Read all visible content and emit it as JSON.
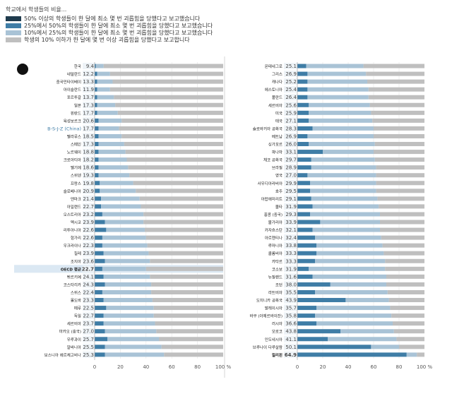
{
  "legend": {
    "title": "학교에서 학생들의 비율...",
    "items": [
      {
        "label": "50% 이상의 학생들이 한 달에 최소 몇 번 괴롭힘을 당했다고 보고했습니다",
        "color": "#1f3b4d"
      },
      {
        "label": "25%에서 50%의 학생들이 한 달에 최소 몇 번 괴롭힘을 당했다고 보고했습니다",
        "color": "#3f7da6"
      },
      {
        "label": "10%에서 25%의 학생들이 한 달에 최소 몇 번 괴롭힘을 당했다고 보고했습니다",
        "color": "#a9c3d6"
      },
      {
        "label": "학생의 10% 이하가 한 달에 몇 번 이상 괴롭힘을 당했다고 보고합니다",
        "color": "#bfbfbf"
      }
    ]
  },
  "chart_data": {
    "type": "bar",
    "subtype": "horizontal-stacked-100",
    "xlim": [
      0,
      100
    ],
    "xticks": [
      "0",
      "20",
      "40",
      "60",
      "80",
      "100 %"
    ],
    "series_names": [
      "50% 이상",
      "25%에서 50%",
      "10%에서 25%",
      "10% 이하"
    ],
    "series_colors": [
      "#1f3b4d",
      "#3f7da6",
      "#a9c3d6",
      "#bfbfbf"
    ],
    "left_panel": [
      {
        "name": "한국",
        "value": "9.4",
        "s": [
          0,
          1,
          6,
          93
        ]
      },
      {
        "name": "네덜란드",
        "value": "12.2",
        "s": [
          0,
          2,
          10,
          88
        ]
      },
      {
        "name": "중국민타이베이",
        "value": "13.3",
        "s": [
          0,
          2,
          12,
          86
        ]
      },
      {
        "name": "아이슬란드",
        "value": "11.9",
        "s": [
          0,
          2,
          10,
          88
        ]
      },
      {
        "name": "포르투갈",
        "value": "13.7",
        "s": [
          0,
          2,
          13,
          85
        ]
      },
      {
        "name": "일본",
        "value": "17.3",
        "s": [
          0,
          2,
          14,
          84
        ]
      },
      {
        "name": "핀란드",
        "value": "17.7",
        "s": [
          0,
          2,
          16,
          82
        ]
      },
      {
        "name": "육성보르크",
        "value": "20.6",
        "s": [
          0,
          3,
          18,
          79
        ]
      },
      {
        "name": "B-S-J-Z (China)",
        "value": "17.7",
        "s": [
          0,
          3,
          16,
          81
        ],
        "highlight": true
      },
      {
        "name": "벨라루스",
        "value": "18.5",
        "s": [
          0,
          3,
          18,
          79
        ]
      },
      {
        "name": "스페인",
        "value": "17.3",
        "s": [
          0,
          3,
          20,
          77
        ]
      },
      {
        "name": "노르웨이",
        "value": "18.8",
        "s": [
          0,
          3,
          21,
          76
        ]
      },
      {
        "name": "크로아티아",
        "value": "18.2",
        "s": [
          0,
          3,
          22,
          75
        ]
      },
      {
        "name": "벨기에",
        "value": "18.6",
        "s": [
          0,
          3,
          23,
          74
        ]
      },
      {
        "name": "스위덴",
        "value": "19.3",
        "s": [
          0,
          3,
          24,
          73
        ]
      },
      {
        "name": "프랑스",
        "value": "19.8",
        "s": [
          0,
          4,
          26,
          70
        ]
      },
      {
        "name": "슬로베니아",
        "value": "20.9",
        "s": [
          0,
          4,
          28,
          68
        ]
      },
      {
        "name": "덴마크",
        "value": "21.4",
        "s": [
          0,
          5,
          30,
          65
        ]
      },
      {
        "name": "아일랜드",
        "value": "22.7",
        "s": [
          0,
          5,
          31,
          64
        ]
      },
      {
        "name": "오스트리아",
        "value": "23.2",
        "s": [
          0,
          6,
          32,
          62
        ]
      },
      {
        "name": "멕시코",
        "value": "23.9",
        "s": [
          0,
          8,
          30,
          62
        ]
      },
      {
        "name": "리투아니아",
        "value": "22.6",
        "s": [
          0,
          9,
          30,
          61
        ]
      },
      {
        "name": "헝가리",
        "value": "22.6",
        "s": [
          0,
          6,
          34,
          60
        ]
      },
      {
        "name": "우크라이나",
        "value": "22.3",
        "s": [
          0,
          6,
          35,
          59
        ]
      },
      {
        "name": "칠레",
        "value": "23.9",
        "s": [
          0,
          7,
          35,
          58
        ]
      },
      {
        "name": "조지아",
        "value": "23.6",
        "s": [
          0,
          8,
          35,
          57
        ]
      },
      {
        "name": "OECD 평균",
        "value": "22.7",
        "s": [
          0,
          6,
          34,
          60
        ],
        "oecd": true
      },
      {
        "name": "튀르키예",
        "value": "24.1",
        "s": [
          0,
          7,
          36,
          57
        ]
      },
      {
        "name": "코스타리카",
        "value": "24.3",
        "s": [
          0,
          8,
          36,
          56
        ]
      },
      {
        "name": "스위스",
        "value": "22.4",
        "s": [
          0,
          6,
          38,
          56
        ]
      },
      {
        "name": "몰도바",
        "value": "23.3",
        "s": [
          0,
          7,
          38,
          55
        ]
      },
      {
        "name": "페루",
        "value": "22.5",
        "s": [
          0,
          9,
          37,
          54
        ]
      },
      {
        "name": "독일",
        "value": "22.7",
        "s": [
          0,
          7,
          39,
          54
        ]
      },
      {
        "name": "세르비아",
        "value": "23.7",
        "s": [
          0,
          7,
          40,
          53
        ]
      },
      {
        "name": "마카오 (중국)",
        "value": "27.0",
        "s": [
          0,
          8,
          40,
          52
        ]
      },
      {
        "name": "우루과이",
        "value": "25.7",
        "s": [
          0,
          10,
          40,
          50
        ]
      },
      {
        "name": "알바니아",
        "value": "25.5",
        "s": [
          0,
          8,
          44,
          48
        ]
      },
      {
        "name": "보스니아 헤르체고비나",
        "value": "25.3",
        "s": [
          0,
          8,
          46,
          46
        ]
      }
    ],
    "right_panel": [
      {
        "name": "몬테네그로",
        "value": "25.1",
        "s": [
          0,
          7,
          45,
          48
        ]
      },
      {
        "name": "그리스",
        "value": "26.9",
        "s": [
          0,
          8,
          46,
          46
        ]
      },
      {
        "name": "캐나다",
        "value": "25.2",
        "s": [
          0,
          8,
          47,
          45
        ]
      },
      {
        "name": "에스토니아",
        "value": "25.4",
        "s": [
          0,
          8,
          48,
          44
        ]
      },
      {
        "name": "폴란드",
        "value": "26.4",
        "s": [
          0,
          8,
          48,
          44
        ]
      },
      {
        "name": "세르비아",
        "value": "25.6",
        "s": [
          0,
          9,
          48,
          43
        ]
      },
      {
        "name": "미국",
        "value": "25.9",
        "s": [
          0,
          9,
          49,
          42
        ]
      },
      {
        "name": "태국",
        "value": "27.1",
        "s": [
          0,
          9,
          50,
          41
        ]
      },
      {
        "name": "슬로바키아 공화국",
        "value": "28.3",
        "s": [
          0,
          12,
          48,
          40
        ]
      },
      {
        "name": "베트남",
        "value": "26.9",
        "s": [
          0,
          8,
          52,
          40
        ]
      },
      {
        "name": "싱가포르",
        "value": "26.0",
        "s": [
          0,
          9,
          52,
          39
        ]
      },
      {
        "name": "파나마",
        "value": "33.1",
        "s": [
          0,
          20,
          40,
          40
        ]
      },
      {
        "name": "체코 공화국",
        "value": "29.7",
        "s": [
          0,
          11,
          50,
          39
        ]
      },
      {
        "name": "브라질",
        "value": "28.9",
        "s": [
          0,
          11,
          51,
          38
        ]
      },
      {
        "name": "영국",
        "value": "27.0",
        "s": [
          0,
          8,
          54,
          38
        ]
      },
      {
        "name": "사우디아라비아",
        "value": "29.9",
        "s": [
          0,
          10,
          52,
          38
        ]
      },
      {
        "name": "호주",
        "value": "29.5",
        "s": [
          0,
          10,
          52,
          38
        ]
      },
      {
        "name": "아랍에미리트",
        "value": "29.1",
        "s": [
          0,
          11,
          52,
          37
        ]
      },
      {
        "name": "몰타",
        "value": "31.9",
        "s": [
          0,
          12,
          52,
          36
        ]
      },
      {
        "name": "홍콩 (중국)",
        "value": "29.3",
        "s": [
          0,
          10,
          55,
          35
        ]
      },
      {
        "name": "불가리아",
        "value": "33.9",
        "s": [
          0,
          18,
          47,
          35
        ]
      },
      {
        "name": "카자흐스탄",
        "value": "32.1",
        "s": [
          0,
          12,
          53,
          35
        ]
      },
      {
        "name": "아르헨티나",
        "value": "32.4",
        "s": [
          0,
          14,
          52,
          34
        ]
      },
      {
        "name": "루마니아",
        "value": "33.8",
        "s": [
          0,
          15,
          52,
          33
        ]
      },
      {
        "name": "콜롬비아",
        "value": "33.3",
        "s": [
          0,
          15,
          53,
          32
        ]
      },
      {
        "name": "카타르",
        "value": "33.3",
        "s": [
          0,
          14,
          55,
          31
        ]
      },
      {
        "name": "코소보",
        "value": "31.9",
        "s": [
          0,
          9,
          60,
          31
        ]
      },
      {
        "name": "뉴질랜드",
        "value": "31.6",
        "s": [
          0,
          12,
          58,
          30
        ]
      },
      {
        "name": "조던",
        "value": "38.0",
        "s": [
          0,
          26,
          44,
          30
        ]
      },
      {
        "name": "라트비아",
        "value": "35.5",
        "s": [
          0,
          14,
          57,
          29
        ]
      },
      {
        "name": "도미니카 공화국",
        "value": "43.9",
        "s": [
          0,
          38,
          34,
          28
        ]
      },
      {
        "name": "말레이시아",
        "value": "35.7",
        "s": [
          0,
          15,
          58,
          27
        ]
      },
      {
        "name": "바쿠 (아제르바이잔)",
        "value": "35.8",
        "s": [
          0,
          14,
          60,
          26
        ]
      },
      {
        "name": "러시아",
        "value": "36.6",
        "s": [
          0,
          15,
          60,
          25
        ]
      },
      {
        "name": "모로코",
        "value": "43.8",
        "s": [
          0,
          34,
          42,
          24
        ]
      },
      {
        "name": "인도네시아",
        "value": "41.1",
        "s": [
          0,
          24,
          54,
          22
        ]
      },
      {
        "name": "브루나이 다루살람",
        "value": "50.1",
        "s": [
          0,
          58,
          22,
          20
        ]
      },
      {
        "name": "필리핀",
        "value": "64.9",
        "s": [
          0,
          86,
          8,
          6
        ],
        "bold": true
      }
    ]
  }
}
